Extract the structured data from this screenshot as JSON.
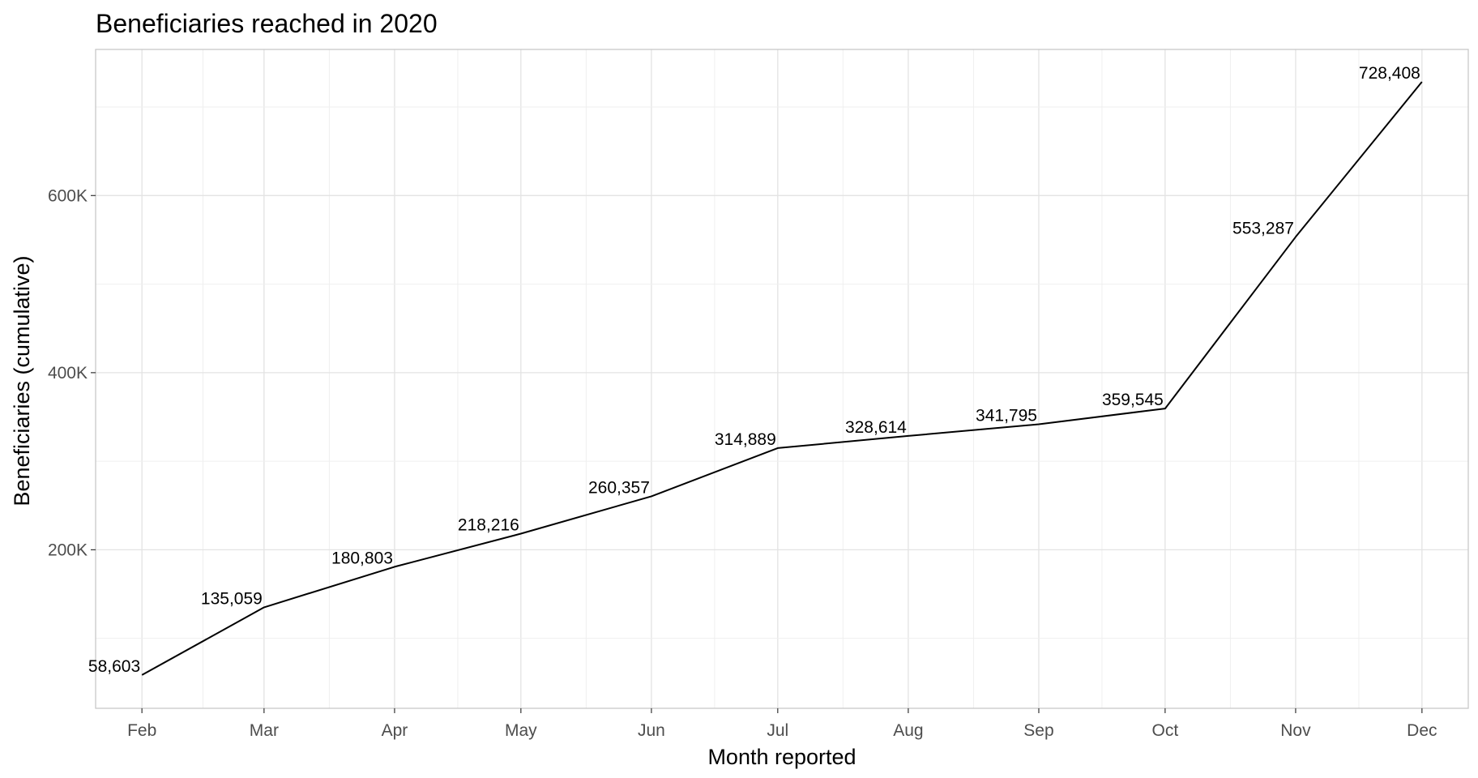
{
  "chart_data": {
    "type": "line",
    "title": "Beneficiaries reached in 2020",
    "xlabel": "Month reported",
    "ylabel": "Beneficiaries (cumulative)",
    "x_dates": [
      "2020-02-01",
      "2020-03-01",
      "2020-04-01",
      "2020-05-01",
      "2020-06-01",
      "2020-07-01",
      "2020-08-01",
      "2020-09-01",
      "2020-10-01",
      "2020-11-01",
      "2020-12-01"
    ],
    "x_tick_labels": [
      "Feb",
      "Mar",
      "Apr",
      "May",
      "Jun",
      "Jul",
      "Aug",
      "Sep",
      "Oct",
      "Nov",
      "Dec"
    ],
    "y_tick_values": [
      200000,
      400000,
      600000
    ],
    "y_tick_labels": [
      "200K",
      "400K",
      "600K"
    ],
    "ylim": [
      21000,
      765000
    ],
    "grid": true,
    "series": [
      {
        "points": [
          {
            "x": "2020-02-01",
            "y": 58603,
            "label": "58,603"
          },
          {
            "x": "2020-03-01",
            "y": 135059,
            "label": "135,059"
          },
          {
            "x": "2020-04-01",
            "y": 180803,
            "label": "180,803"
          },
          {
            "x": "2020-05-01",
            "y": 218216,
            "label": "218,216"
          },
          {
            "x": "2020-06-01",
            "y": 260357,
            "label": "260,357"
          },
          {
            "x": "2020-07-01",
            "y": 314889,
            "label": "314,889"
          },
          {
            "x": "2020-08-01",
            "y": 328614,
            "label": "328,614"
          },
          {
            "x": "2020-09-01",
            "y": 341795,
            "label": "341,795"
          },
          {
            "x": "2020-10-01",
            "y": 359545,
            "label": "359,545"
          },
          {
            "x": "2020-11-01",
            "y": 553287,
            "label": "553,287"
          },
          {
            "x": "2020-12-01",
            "y": 728408,
            "label": "728,408"
          }
        ],
        "color": "#000000"
      }
    ]
  }
}
